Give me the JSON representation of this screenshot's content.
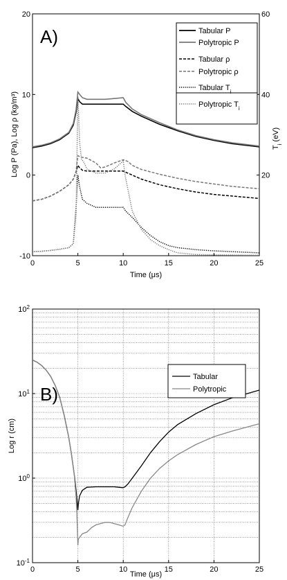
{
  "chart_data": [
    {
      "type": "line",
      "panel_label": "A)",
      "xlabel": "Time (μs)",
      "ylabel": "Log P (Pa), Log ρ (kg/m³)",
      "y2label_main": "T",
      "y2label_sub": "i",
      "y2label_rest": " (eV)",
      "xlim": [
        0,
        25
      ],
      "ylim": [
        -10,
        20
      ],
      "y2lim": [
        0,
        60
      ],
      "xticks": [
        "0",
        "5",
        "10",
        "15",
        "20",
        "25"
      ],
      "yticks": [
        "-10",
        "0",
        "10",
        "20"
      ],
      "y2ticks": [
        "20",
        "40",
        "60"
      ],
      "legend_placement": "top-right",
      "series": [
        {
          "name": "Tabular P",
          "axis": "left",
          "color": "#000000",
          "dash": "solid",
          "x": [
            0,
            1,
            2,
            3,
            3.5,
            4,
            4.5,
            4.8,
            5.0,
            5.2,
            5.5,
            6,
            7,
            8,
            9,
            10,
            10.3,
            11,
            12,
            14,
            16,
            18,
            20,
            22,
            25
          ],
          "y": [
            3.4,
            3.6,
            3.9,
            4.4,
            4.8,
            5.2,
            6.2,
            7.8,
            9.5,
            9.1,
            8.8,
            8.8,
            8.8,
            8.8,
            8.8,
            8.8,
            8.5,
            7.9,
            7.3,
            6.3,
            5.5,
            4.8,
            4.3,
            3.9,
            3.5
          ]
        },
        {
          "name": "Polytropic P",
          "axis": "left",
          "color": "#777777",
          "dash": "solid",
          "x": [
            0,
            1,
            2,
            3,
            3.5,
            4,
            4.5,
            4.8,
            5.0,
            5.2,
            5.5,
            6,
            7,
            8,
            9,
            10,
            10.3,
            11,
            12,
            14,
            16,
            18,
            20,
            22,
            25
          ],
          "y": [
            3.5,
            3.7,
            4.0,
            4.5,
            4.9,
            5.3,
            6.4,
            8.1,
            10.3,
            10.0,
            9.6,
            9.4,
            9.4,
            9.4,
            9.5,
            9.6,
            9.0,
            8.2,
            7.5,
            6.5,
            5.6,
            4.9,
            4.4,
            4.0,
            3.6
          ]
        },
        {
          "name": "Tabular ρ",
          "axis": "left",
          "color": "#000000",
          "dash": "dashed",
          "x": [
            0,
            1,
            2,
            3,
            4,
            4.5,
            4.8,
            5.0,
            5.2,
            5.5,
            6,
            7,
            8,
            9,
            10,
            11,
            12,
            14,
            16,
            18,
            20,
            22,
            25
          ],
          "y": [
            -3.2,
            -3.0,
            -2.6,
            -2.0,
            -1.2,
            -0.5,
            0.4,
            1.2,
            0.9,
            0.6,
            0.5,
            0.5,
            0.5,
            0.5,
            0.5,
            0.0,
            -0.5,
            -1.2,
            -1.7,
            -2.1,
            -2.4,
            -2.6,
            -2.9
          ]
        },
        {
          "name": "Polytropic ρ",
          "axis": "left",
          "color": "#777777",
          "dash": "dashed",
          "x": [
            0,
            1,
            2,
            3,
            4,
            4.5,
            4.8,
            5.0,
            5.2,
            5.5,
            6,
            7,
            7.5,
            8,
            9,
            10,
            10.5,
            11,
            12,
            14,
            16,
            18,
            20,
            22,
            25
          ],
          "y": [
            -3.2,
            -3.0,
            -2.6,
            -2.0,
            -1.2,
            -0.5,
            0.5,
            2.4,
            2.3,
            2.2,
            2.1,
            1.5,
            0.9,
            1.0,
            1.5,
            1.9,
            1.7,
            1.2,
            0.7,
            0.1,
            -0.4,
            -0.8,
            -1.1,
            -1.4,
            -1.7
          ]
        },
        {
          "name": "Tabular T",
          "name_sub": "i",
          "axis": "right",
          "color": "#000000",
          "dash": "dotted",
          "x": [
            0,
            1,
            2,
            3,
            4,
            4.5,
            4.8,
            5.0,
            5.2,
            5.5,
            6,
            6.5,
            7,
            8,
            9,
            10,
            10.3,
            11,
            12,
            13,
            14,
            15,
            16,
            18,
            20,
            25
          ],
          "y": [
            1.0,
            1.1,
            1.3,
            1.6,
            2.0,
            3.0,
            12.0,
            20.0,
            17.0,
            14.0,
            13.0,
            12.5,
            12.0,
            12.0,
            12.0,
            12.0,
            11.0,
            9.5,
            7.0,
            5.0,
            3.5,
            2.5,
            2.0,
            1.5,
            1.2,
            0.7
          ]
        },
        {
          "name": "Polytropic T",
          "name_sub": "i",
          "axis": "right",
          "color": "#777777",
          "dash": "dotted",
          "x": [
            0,
            1,
            2,
            3,
            4,
            4.5,
            4.8,
            5.0,
            5.1,
            5.2,
            5.4,
            5.7,
            6,
            7,
            8,
            9,
            10,
            10.2,
            11,
            12,
            13,
            14,
            15,
            16,
            18,
            20,
            25
          ],
          "y": [
            1.0,
            1.1,
            1.3,
            1.6,
            2.0,
            3.0,
            10.0,
            39.5,
            34.0,
            28.0,
            24.0,
            23.0,
            21.5,
            20.5,
            20.5,
            21.5,
            23.5,
            20.0,
            11.0,
            6.5,
            4.0,
            2.5,
            1.5,
            0.7,
            0.3,
            0.2,
            0.1
          ]
        }
      ]
    },
    {
      "type": "line",
      "panel_label": "B)",
      "xlabel": "Time (μs)",
      "ylabel": "Log r (cm)",
      "yscale": "log",
      "xlim": [
        0,
        25
      ],
      "ylim": [
        0.1,
        100
      ],
      "xticks": [
        "0",
        "5",
        "10",
        "15",
        "20",
        "25"
      ],
      "yticks_base": [
        "10",
        "10",
        "10",
        "10"
      ],
      "yticks_exp": [
        "-1",
        "0",
        "1",
        "2"
      ],
      "grid": true,
      "legend_placement": "top-right",
      "series": [
        {
          "name": "Tabular",
          "color": "#000000",
          "x": [
            0,
            0.5,
            1,
            1.5,
            2,
            2.5,
            3,
            3.5,
            4,
            4.3,
            4.6,
            4.8,
            4.9,
            5.0,
            5.05,
            5.2,
            5.5,
            6,
            7,
            8,
            9,
            9.5,
            10,
            10.2,
            10.5,
            11,
            12,
            13,
            14,
            15,
            16,
            18,
            20,
            22,
            25
          ],
          "y": [
            25,
            23.5,
            21.5,
            19,
            16,
            12.5,
            9,
            5.5,
            3.0,
            1.9,
            1.1,
            0.72,
            0.55,
            0.42,
            0.5,
            0.62,
            0.72,
            0.78,
            0.79,
            0.79,
            0.79,
            0.78,
            0.77,
            0.79,
            0.85,
            1.0,
            1.4,
            2.0,
            2.7,
            3.5,
            4.3,
            5.8,
            7.4,
            8.9,
            11.0
          ]
        },
        {
          "name": "Polytropic",
          "color": "#888888",
          "x": [
            0,
            0.5,
            1,
            1.5,
            2,
            2.5,
            3,
            3.5,
            4,
            4.3,
            4.6,
            4.8,
            4.9,
            5.0,
            5.05,
            5.2,
            5.5,
            6,
            6.5,
            7,
            7.5,
            8,
            8.5,
            9,
            9.5,
            10,
            10.2,
            10.5,
            11,
            12,
            13,
            14,
            15,
            16,
            18,
            20,
            22,
            25
          ],
          "y": [
            25,
            23.5,
            21.5,
            19,
            16,
            12.5,
            9,
            5.5,
            3.0,
            1.9,
            1.1,
            0.6,
            0.35,
            0.16,
            0.19,
            0.2,
            0.22,
            0.23,
            0.26,
            0.28,
            0.29,
            0.3,
            0.3,
            0.29,
            0.28,
            0.27,
            0.28,
            0.34,
            0.45,
            0.7,
            1.0,
            1.3,
            1.6,
            1.9,
            2.5,
            3.1,
            3.6,
            4.4
          ]
        }
      ]
    }
  ]
}
